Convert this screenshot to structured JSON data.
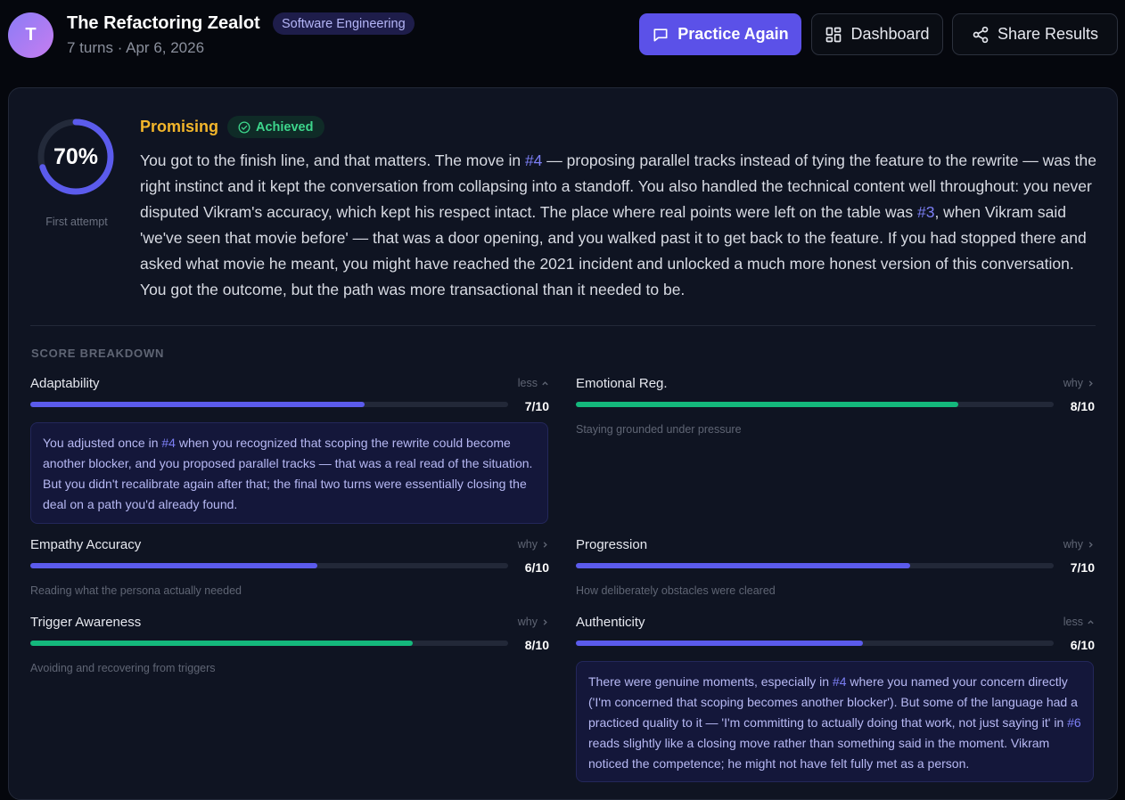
{
  "header": {
    "avatar_initial": "T",
    "title": "The Refactoring Zealot",
    "category": "Software Engineering",
    "meta": "7 turns · Apr 6, 2026",
    "buttons": {
      "practice_again": "Practice Again",
      "dashboard": "Dashboard",
      "share_results": "Share Results"
    }
  },
  "result": {
    "score_percent": 70,
    "score_label": "70%",
    "attempt_label": "First attempt",
    "verdict": "Promising",
    "status": "Achieved",
    "summary": {
      "p1": "You got to the finish line, and that matters. The move in ",
      "ref1": "#4",
      "p2": " — proposing parallel tracks instead of tying the feature to the rewrite — was the right instinct and it kept the conversation from collapsing into a standoff. You also handled the technical content well throughout: you never disputed Vikram's accuracy, which kept his respect intact. The place where real points were left on the table was ",
      "ref2": "#3",
      "p3": ", when Vikram said 'we've seen that movie before' — that was a door opening, and you walked past it to get back to the feature. If you had stopped there and asked what movie he meant, you might have reached the 2021 incident and unlocked a much more honest version of this conversation. You got the outcome, but the path was more transactional than it needed to be."
    }
  },
  "breakdown": {
    "label": "SCORE BREAKDOWN",
    "metrics": [
      {
        "name": "Adaptability",
        "toggle": "less",
        "score": 7,
        "max": 10,
        "score_label": "7/10",
        "color": "indigo",
        "detail": {
          "p1": "You adjusted once in ",
          "ref1": "#4",
          "p2": " when you recognized that scoping the rewrite could become another blocker, and you proposed parallel tracks — that was a real read of the situation. But you didn't recalibrate again after that; the final two turns were essentially closing the deal on a path you'd already found."
        }
      },
      {
        "name": "Emotional Reg.",
        "toggle": "why",
        "score": 8,
        "max": 10,
        "score_label": "8/10",
        "color": "green",
        "description": "Staying grounded under pressure"
      },
      {
        "name": "Empathy Accuracy",
        "toggle": "why",
        "score": 6,
        "max": 10,
        "score_label": "6/10",
        "color": "indigo",
        "description": "Reading what the persona actually needed"
      },
      {
        "name": "Progression",
        "toggle": "why",
        "score": 7,
        "max": 10,
        "score_label": "7/10",
        "color": "indigo",
        "description": "How deliberately obstacles were cleared"
      },
      {
        "name": "Trigger Awareness",
        "toggle": "why",
        "score": 8,
        "max": 10,
        "score_label": "8/10",
        "color": "green",
        "description": "Avoiding and recovering from triggers"
      },
      {
        "name": "Authenticity",
        "toggle": "less",
        "score": 6,
        "max": 10,
        "score_label": "6/10",
        "color": "indigo",
        "detail": {
          "p1": "There were genuine moments, especially in ",
          "ref1": "#4",
          "p2": " where you named your concern directly ('I'm concerned that scoping becomes another blocker'). But some of the language had a practiced quality to it — 'I'm committing to actually doing that work, not just saying it' in ",
          "ref2": "#6",
          "p3": " reads slightly like a closing move rather than something said in the moment. Vikram noticed the competence; he might not have felt fully met as a person."
        }
      }
    ]
  },
  "colors": {
    "accent": "#5b51e8",
    "indigo_bar": "#5b5bec",
    "green_bar": "#14b87c",
    "verdict": "#f3b62b",
    "achieved": "#3dd68c"
  },
  "icons": {
    "practice_again": "chat-bubble-icon",
    "dashboard": "grid-icon",
    "share_results": "share-icon",
    "achieved": "check-circle-icon",
    "toggle_less": "chevron-up-icon",
    "toggle_why": "chevron-right-icon"
  }
}
